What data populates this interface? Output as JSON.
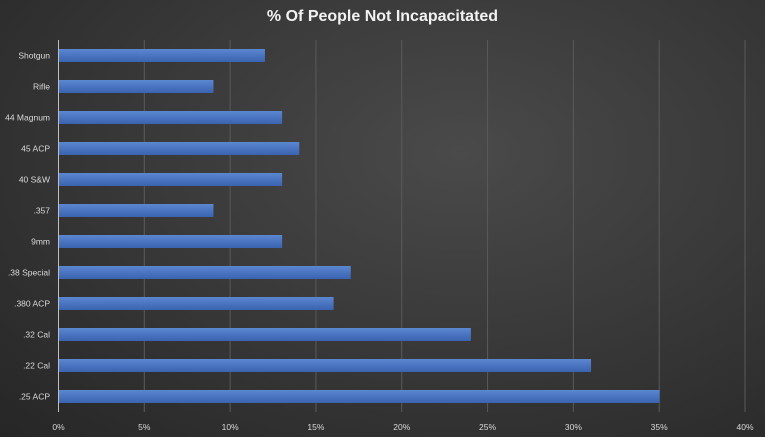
{
  "chart_data": {
    "type": "bar",
    "orientation": "horizontal",
    "title": "% Of People Not Incapacitated",
    "categories": [
      "Shotgun",
      "Rifle",
      "44 Magnum",
      "45 ACP",
      "40 S&W",
      ".357",
      "9mm",
      ".38 Special",
      ".380 ACP",
      ".32 Cal",
      ".22 Cal",
      ".25 ACP"
    ],
    "values": [
      12,
      9,
      13,
      14,
      13,
      9,
      13,
      17,
      16,
      24,
      31,
      35
    ],
    "xlabel": "",
    "ylabel": "",
    "xlim": [
      0,
      40
    ],
    "xticks": [
      "0%",
      "5%",
      "10%",
      "15%",
      "20%",
      "25%",
      "30%",
      "35%",
      "40%"
    ],
    "grid": true,
    "bar_color": "#4472c4"
  }
}
